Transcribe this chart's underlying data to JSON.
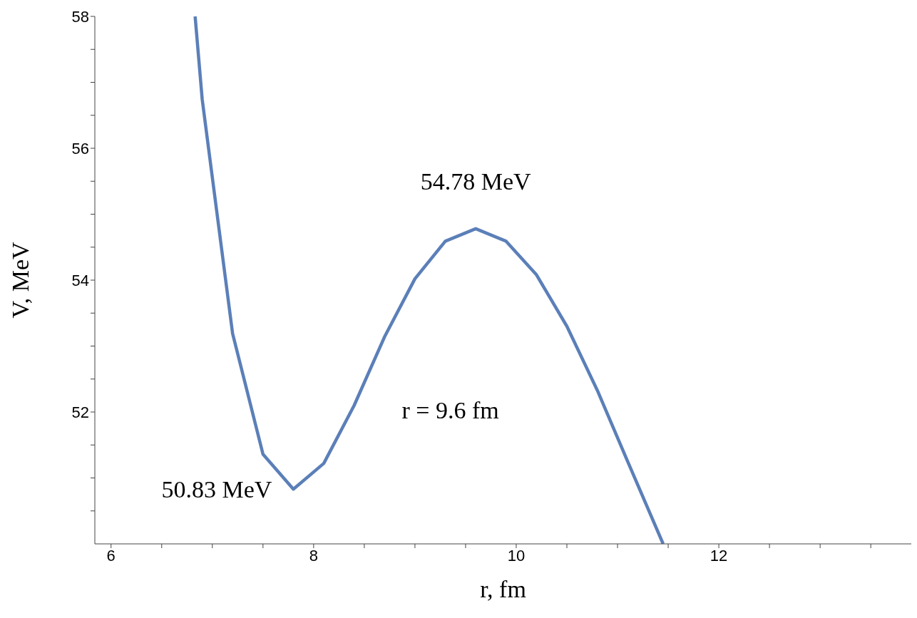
{
  "chart_data": {
    "type": "line",
    "xlabel": "r, fm",
    "ylabel": "V, MeV",
    "x": [
      6.83,
      6.9,
      7.2,
      7.5,
      7.8,
      8.1,
      8.4,
      8.7,
      9.0,
      9.3,
      9.6,
      9.9,
      10.2,
      10.5,
      10.8,
      11.1,
      11.45
    ],
    "series": [
      {
        "color": "#5b7fb8",
        "values": [
          58,
          56.74,
          53.19,
          51.36,
          50.83,
          51.22,
          52.1,
          53.14,
          54.02,
          54.59,
          54.78,
          54.59,
          54.08,
          53.3,
          52.33,
          51.25,
          50
        ]
      }
    ],
    "xlim": [
      5.84,
      13.9
    ],
    "xticks": [
      6,
      {
        "value": 6.5,
        "label": null
      },
      {
        "value": 7,
        "label": null
      },
      {
        "value": 7.5,
        "label": null
      },
      8,
      {
        "value": 8.5,
        "label": null
      },
      {
        "value": 9,
        "label": null
      },
      {
        "value": 9.5,
        "label": null
      },
      10,
      {
        "value": 10.5,
        "label": null
      },
      {
        "value": 11,
        "label": null
      },
      {
        "value": 11.5,
        "label": null
      },
      12,
      {
        "value": 12.5,
        "label": null
      },
      {
        "value": 13,
        "label": null
      },
      {
        "value": 13.5,
        "label": null
      }
    ],
    "ylim": [
      50,
      58
    ],
    "yticks": [
      {
        "value": 50.5,
        "label": null
      },
      {
        "value": 51,
        "label": null
      },
      {
        "value": 51.5,
        "label": null
      },
      52,
      {
        "value": 52.5,
        "label": null
      },
      {
        "value": 53,
        "label": null
      },
      {
        "value": 53.5,
        "label": null
      },
      54,
      {
        "value": 54.5,
        "label": null
      },
      {
        "value": 55,
        "label": null
      },
      {
        "value": 55.5,
        "label": null
      },
      56,
      {
        "value": 56.5,
        "label": null
      },
      {
        "value": 57,
        "label": null
      },
      {
        "value": 57.5,
        "label": null
      },
      58
    ],
    "annotations": [
      {
        "text": "54.78 MeV",
        "x": 9.6,
        "y": 54.78
      },
      {
        "text": "50.83 MeV",
        "x": 7.8,
        "y": 50.83
      },
      "r = 9.6 fm"
    ],
    "grid": false,
    "legend": false,
    "marker": "none",
    "line_style": "solid"
  }
}
